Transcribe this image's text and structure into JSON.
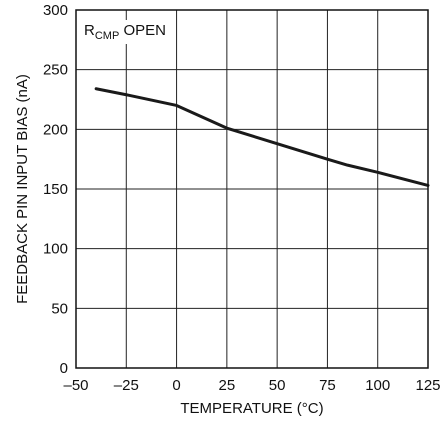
{
  "chart_data": {
    "type": "line",
    "xlabel": "TEMPERATURE (°C)",
    "ylabel": "FEEDBACK PIN INPUT BIAS (nA)",
    "xlim": [
      -50,
      125
    ],
    "ylim": [
      0,
      300
    ],
    "x_ticks": [
      -50,
      -25,
      0,
      25,
      50,
      75,
      100,
      125
    ],
    "x_tick_labels": [
      "–50",
      "–25",
      "0",
      "25",
      "50",
      "75",
      "100",
      "125"
    ],
    "y_ticks": [
      0,
      50,
      100,
      150,
      200,
      250,
      300
    ],
    "y_tick_labels": [
      "0",
      "50",
      "100",
      "150",
      "200",
      "250",
      "300"
    ],
    "grid": true,
    "annotation": {
      "main": "R",
      "subscript": "CMP",
      "rest": " OPEN"
    },
    "series": [
      {
        "x": [
          -40,
          -25,
          0,
          25,
          50,
          75,
          85,
          100,
          125
        ],
        "y": [
          234,
          229,
          220,
          201,
          188,
          175,
          170,
          164,
          153
        ],
        "color": "#1a1a1a"
      }
    ]
  }
}
